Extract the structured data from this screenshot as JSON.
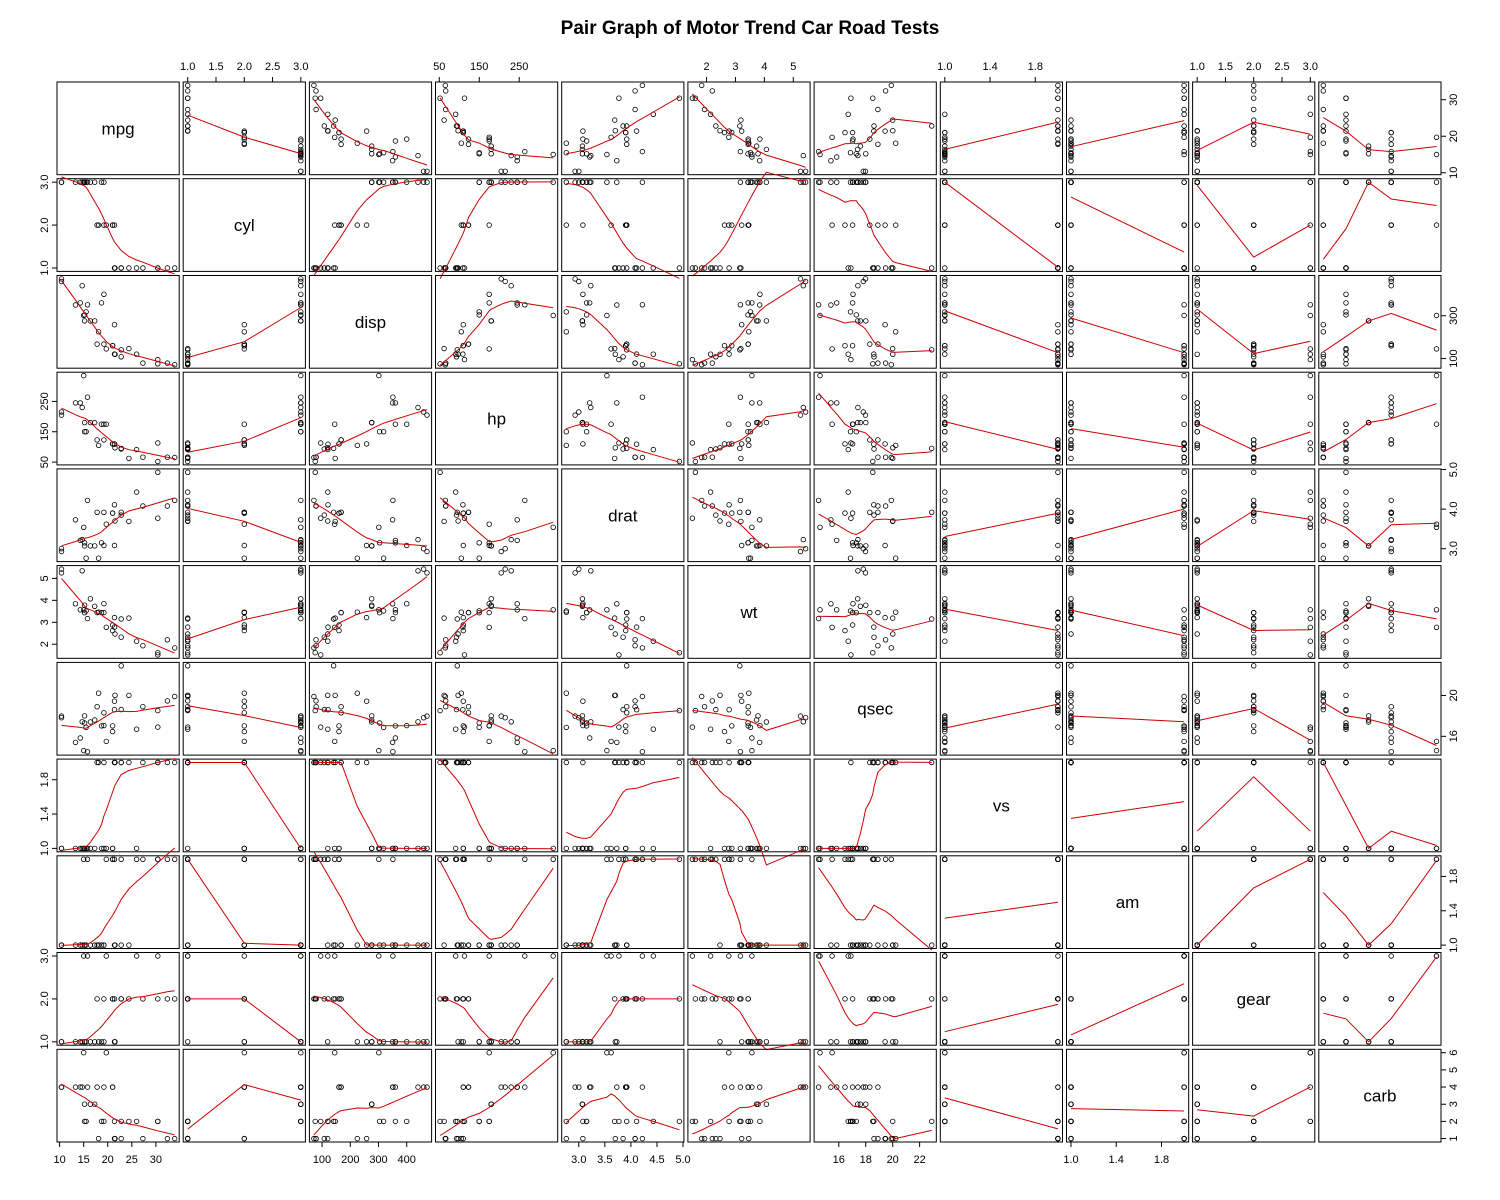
{
  "chart_data": {
    "type": "scatter",
    "title": "Pair Graph of Motor Trend Car Road Tests",
    "variables": [
      "mpg",
      "cyl",
      "disp",
      "hp",
      "drat",
      "wt",
      "qsec",
      "vs",
      "am",
      "gear",
      "carb"
    ],
    "diagonal_labels": [
      "mpg",
      "cyl",
      "disp",
      "hp",
      "drat",
      "wt",
      "qsec",
      "vs",
      "am",
      "gear",
      "carb"
    ],
    "smoother": "lowess",
    "colors": {
      "points": "#000000",
      "smoother": "#cc0000"
    },
    "axes": {
      "top": {
        "cyl": [
          "1.0",
          "1.5",
          "2.0",
          "2.5",
          "3.0"
        ],
        "hp": [
          "50",
          "150",
          "250"
        ],
        "wt": [
          "2",
          "3",
          "4",
          "5"
        ],
        "vs": [
          "1.0",
          "1.4",
          "1.8"
        ],
        "gear": [
          "1.0",
          "1.5",
          "2.0",
          "2.5",
          "3.0"
        ]
      },
      "bottom": {
        "mpg": [
          "10",
          "15",
          "20",
          "25",
          "30"
        ],
        "disp": [
          "100",
          "200",
          "300",
          "400"
        ],
        "drat": [
          "3.0",
          "3.5",
          "4.0",
          "4.5",
          "5.0"
        ],
        "qsec": [
          "16",
          "18",
          "20",
          "22"
        ],
        "am": [
          "1.0",
          "1.4",
          "1.8"
        ]
      },
      "left": {
        "cyl": [
          "1.0",
          "2.0",
          "3.0"
        ],
        "hp": [
          "50",
          "150",
          "250"
        ],
        "wt": [
          "2",
          "3",
          "4",
          "5"
        ],
        "vs": [
          "1.0",
          "1.4",
          "1.8"
        ],
        "gear": [
          "1.0",
          "2.0",
          "3.0"
        ]
      },
      "right": {
        "mpg": [
          "10",
          "20",
          "30"
        ],
        "disp": [
          "100",
          "300"
        ],
        "drat": [
          "3.0",
          "4.0",
          "5.0"
        ],
        "qsec": [
          "16",
          "20"
        ],
        "am": [
          "1.0",
          "1.4",
          "1.8"
        ],
        "carb": [
          "1",
          "2",
          "3",
          "4",
          "5",
          "6"
        ]
      }
    },
    "ranges": {
      "mpg": [
        10.4,
        33.9
      ],
      "cyl": [
        1,
        3
      ],
      "disp": [
        71.1,
        472
      ],
      "hp": [
        52,
        335
      ],
      "drat": [
        2.76,
        4.93
      ],
      "wt": [
        1.513,
        5.424
      ],
      "qsec": [
        14.5,
        22.9
      ],
      "vs": [
        1,
        2
      ],
      "am": [
        1,
        2
      ],
      "gear": [
        1,
        3
      ],
      "carb": [
        1,
        6
      ]
    },
    "data": {
      "mpg": [
        21.0,
        21.0,
        22.8,
        21.4,
        18.7,
        18.1,
        14.3,
        24.4,
        22.8,
        19.2,
        17.8,
        16.4,
        17.3,
        15.2,
        10.4,
        10.4,
        14.7,
        32.4,
        30.4,
        33.9,
        21.5,
        15.5,
        15.2,
        13.3,
        19.2,
        27.3,
        26.0,
        30.4,
        15.8,
        19.7,
        15.0,
        21.4
      ],
      "cyl": [
        2,
        2,
        1,
        2,
        3,
        2,
        3,
        1,
        1,
        2,
        2,
        3,
        3,
        3,
        3,
        3,
        3,
        1,
        1,
        1,
        1,
        3,
        3,
        3,
        3,
        1,
        1,
        1,
        3,
        2,
        3,
        1
      ],
      "disp": [
        160,
        160,
        108,
        258,
        360,
        225,
        360,
        146.7,
        140.8,
        167.6,
        167.6,
        275.8,
        275.8,
        275.8,
        472,
        460,
        440,
        78.7,
        75.7,
        71.1,
        120.1,
        318,
        304,
        350,
        400,
        79,
        120.3,
        95.1,
        351,
        145,
        301,
        121
      ],
      "hp": [
        110,
        110,
        93,
        110,
        175,
        105,
        245,
        62,
        95,
        123,
        123,
        180,
        180,
        180,
        205,
        215,
        230,
        66,
        52,
        65,
        97,
        150,
        150,
        245,
        175,
        66,
        91,
        113,
        264,
        175,
        335,
        109
      ],
      "drat": [
        3.9,
        3.9,
        3.85,
        3.08,
        3.15,
        2.76,
        3.21,
        3.69,
        3.92,
        3.92,
        3.92,
        3.07,
        3.07,
        3.07,
        2.93,
        3.0,
        3.23,
        4.08,
        4.93,
        4.22,
        3.7,
        2.76,
        3.15,
        3.73,
        3.08,
        4.08,
        4.43,
        3.77,
        4.22,
        3.62,
        3.54,
        4.11
      ],
      "wt": [
        2.62,
        2.875,
        2.32,
        3.215,
        3.44,
        3.46,
        3.57,
        3.19,
        3.15,
        3.44,
        3.44,
        4.07,
        3.73,
        3.78,
        5.25,
        5.424,
        5.345,
        2.2,
        1.615,
        1.835,
        2.465,
        3.52,
        3.435,
        3.84,
        3.845,
        1.935,
        2.14,
        1.513,
        3.17,
        2.77,
        3.57,
        2.78
      ],
      "qsec": [
        16.46,
        17.02,
        18.61,
        19.44,
        17.02,
        20.22,
        15.84,
        20.0,
        22.9,
        18.3,
        18.9,
        17.4,
        17.6,
        18.0,
        17.98,
        17.82,
        17.42,
        19.47,
        18.52,
        19.9,
        20.01,
        16.87,
        17.3,
        15.41,
        17.05,
        18.9,
        16.7,
        16.9,
        14.5,
        15.5,
        14.6,
        18.6
      ],
      "vs": [
        1,
        1,
        2,
        2,
        1,
        2,
        1,
        2,
        2,
        2,
        2,
        1,
        1,
        1,
        1,
        1,
        1,
        2,
        2,
        2,
        2,
        1,
        1,
        1,
        1,
        2,
        1,
        2,
        1,
        1,
        1,
        2
      ],
      "am": [
        2,
        2,
        2,
        1,
        1,
        1,
        1,
        1,
        1,
        1,
        1,
        1,
        1,
        1,
        1,
        1,
        1,
        2,
        2,
        2,
        1,
        1,
        1,
        1,
        1,
        2,
        2,
        2,
        2,
        2,
        2,
        2
      ],
      "gear": [
        2,
        2,
        2,
        1,
        1,
        1,
        1,
        2,
        2,
        2,
        2,
        1,
        1,
        1,
        1,
        1,
        1,
        2,
        2,
        2,
        1,
        1,
        1,
        1,
        1,
        2,
        3,
        3,
        3,
        3,
        3,
        2
      ],
      "carb": [
        4,
        4,
        1,
        1,
        2,
        1,
        4,
        2,
        2,
        4,
        4,
        3,
        3,
        3,
        4,
        4,
        4,
        1,
        2,
        1,
        1,
        2,
        2,
        4,
        2,
        1,
        2,
        2,
        4,
        6,
        6,
        2
      ]
    }
  }
}
